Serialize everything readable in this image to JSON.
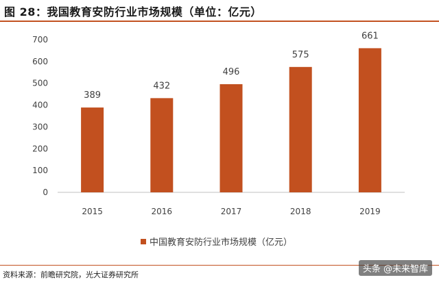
{
  "title": "图 28：我国教育安防行业市场规模（单位：亿元）",
  "source": "资料来源：前瞻研究院，光大证券研究所",
  "watermark": "头条 @未来智库",
  "chart_data": {
    "type": "bar",
    "title": "图 28：我国教育安防行业市场规模（单位：亿元）",
    "categories": [
      "2015",
      "2016",
      "2017",
      "2018",
      "2019"
    ],
    "series": [
      {
        "name": "中国教育安防行业市场规模（亿元）",
        "values": [
          389,
          432,
          496,
          575,
          661
        ],
        "color": "#c2501f"
      }
    ],
    "ylim": [
      0,
      700
    ],
    "yticks": [
      0,
      100,
      200,
      300,
      400,
      500,
      600,
      700
    ],
    "xlabel": "",
    "ylabel": "",
    "grid": false,
    "legend": "bottom"
  }
}
